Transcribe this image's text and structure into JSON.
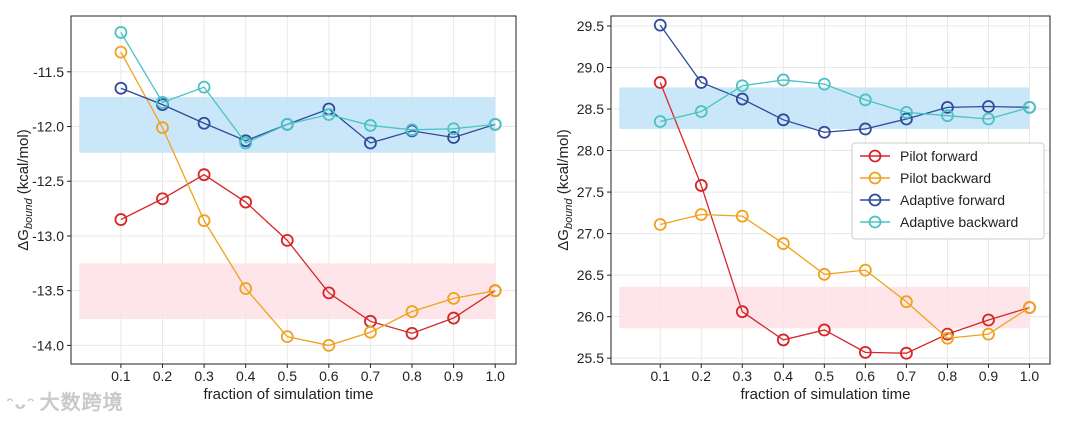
{
  "watermark": {
    "text": "大数跨境",
    "icon": "wechat-logo-icon"
  },
  "colors": {
    "pilot_forward": "#d62728",
    "pilot_backward": "#f0a21c",
    "adaptive_forward": "#2f4b9c",
    "adaptive_backward": "#4bc3c3",
    "band_blue": "#bfe3f7",
    "band_pink": "#fde0e6",
    "grid": "#e8e8e8"
  },
  "chart_data": [
    {
      "type": "line",
      "title": "",
      "xlabel": "fraction of simulation time",
      "ylabel": "ΔG",
      "ylabel_sub": "bound",
      "ylabel_unit": "(kcal/mol)",
      "x": [
        0.1,
        0.2,
        0.3,
        0.4,
        0.5,
        0.6,
        0.7,
        0.8,
        0.9,
        1.0
      ],
      "x_ticks": [
        "0.1",
        "0.2",
        "0.3",
        "0.4",
        "0.5",
        "0.6",
        "0.7",
        "0.8",
        "0.9",
        "1.0"
      ],
      "xlim": [
        -0.02,
        1.05
      ],
      "ylim": [
        -14.17,
        -10.99
      ],
      "y_ticks": [
        -11.5,
        -12.0,
        -12.5,
        -13.0,
        -13.5,
        -14.0
      ],
      "y_tick_labels": [
        "-11.5",
        "-12.0",
        "-12.5",
        "-13.0",
        "-13.5",
        "-14.0"
      ],
      "grid": true,
      "bands": [
        {
          "name": "adaptive",
          "color": "band_blue",
          "range": [
            -12.24,
            -11.73
          ]
        },
        {
          "name": "pilot",
          "color": "band_pink",
          "range": [
            -13.76,
            -13.25
          ]
        }
      ],
      "series": [
        {
          "name": "Pilot forward",
          "color": "pilot_forward",
          "values": [
            -12.85,
            -12.66,
            -12.44,
            -12.69,
            -13.04,
            -13.52,
            -13.78,
            -13.89,
            -13.75,
            -13.5
          ]
        },
        {
          "name": "Pilot backward",
          "color": "pilot_backward",
          "values": [
            -11.32,
            -12.01,
            -12.86,
            -13.48,
            -13.92,
            -14.0,
            -13.88,
            -13.69,
            -13.57,
            -13.5
          ]
        },
        {
          "name": "Adaptive forward",
          "color": "adaptive_forward",
          "values": [
            -11.65,
            -11.8,
            -11.97,
            -12.13,
            -11.98,
            -11.84,
            -12.15,
            -12.04,
            -12.1,
            -11.98
          ]
        },
        {
          "name": "Adaptive backward",
          "color": "adaptive_backward",
          "values": [
            -11.14,
            -11.78,
            -11.64,
            -12.15,
            -11.98,
            -11.89,
            -11.99,
            -12.03,
            -12.02,
            -11.98
          ]
        }
      ],
      "legend": null
    },
    {
      "type": "line",
      "title": "",
      "xlabel": "fraction of simulation time",
      "ylabel": "ΔG",
      "ylabel_sub": "bound",
      "ylabel_unit": "(kcal/mol)",
      "x": [
        0.1,
        0.2,
        0.3,
        0.4,
        0.5,
        0.6,
        0.7,
        0.8,
        0.9,
        1.0
      ],
      "x_ticks": [
        "0.1",
        "0.2",
        "0.3",
        "0.4",
        "0.5",
        "0.6",
        "0.7",
        "0.8",
        "0.9",
        "1.0"
      ],
      "xlim": [
        -0.02,
        1.05
      ],
      "ylim": [
        25.43,
        29.62
      ],
      "y_ticks": [
        29.5,
        29.0,
        28.5,
        28.0,
        27.5,
        27.0,
        26.5,
        26.0,
        25.5
      ],
      "y_tick_labels": [
        "29.5",
        "29.0",
        "28.5",
        "28.0",
        "27.5",
        "27.0",
        "26.5",
        "26.0",
        "25.5"
      ],
      "grid": true,
      "bands": [
        {
          "name": "adaptive",
          "color": "band_blue",
          "range": [
            28.26,
            28.76
          ]
        },
        {
          "name": "pilot",
          "color": "band_pink",
          "range": [
            25.86,
            26.36
          ]
        }
      ],
      "series": [
        {
          "name": "Pilot forward",
          "color": "pilot_forward",
          "values": [
            28.82,
            27.58,
            26.06,
            25.72,
            25.84,
            25.57,
            25.56,
            25.79,
            25.96,
            26.11
          ]
        },
        {
          "name": "Pilot backward",
          "color": "pilot_backward",
          "values": [
            27.11,
            27.23,
            27.21,
            26.88,
            26.51,
            26.56,
            26.18,
            25.74,
            25.79,
            26.11
          ]
        },
        {
          "name": "Adaptive forward",
          "color": "adaptive_forward",
          "values": [
            29.51,
            28.82,
            28.62,
            28.37,
            28.22,
            28.26,
            28.38,
            28.52,
            28.53,
            28.52
          ]
        },
        {
          "name": "Adaptive backward",
          "color": "adaptive_backward",
          "values": [
            28.35,
            28.47,
            28.78,
            28.85,
            28.8,
            28.61,
            28.46,
            28.42,
            28.38,
            28.52
          ]
        }
      ],
      "legend": {
        "placement": "center-right",
        "entries": [
          "Pilot forward",
          "Pilot backward",
          "Adaptive forward",
          "Adaptive backward"
        ]
      }
    }
  ]
}
